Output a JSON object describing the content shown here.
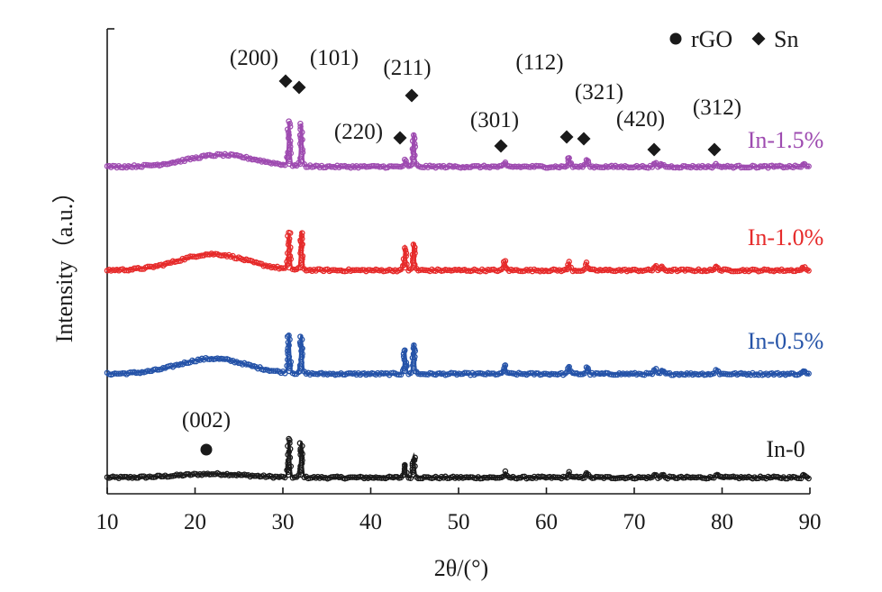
{
  "chart_data": {
    "type": "line",
    "title": "",
    "xlabel": "2θ/(°)",
    "ylabel": "Intensity（a.u.）",
    "xlim": [
      10,
      90
    ],
    "x_ticks": [
      "10",
      "20",
      "30",
      "40",
      "50",
      "60",
      "70",
      "80",
      "90"
    ],
    "y_ticks_shown": false,
    "grid": false,
    "legend": {
      "placement": "top-right",
      "entries": [
        {
          "label": "rGO",
          "marker": "circle"
        },
        {
          "label": "Sn",
          "marker": "diamond"
        }
      ]
    },
    "series": [
      {
        "name": "In-0",
        "color": "#1a1a1a",
        "baseline": 0,
        "hump": {
          "center": 22,
          "height": 4
        },
        "peaks": [
          {
            "x": 30.7,
            "height": 42
          },
          {
            "x": 32.1,
            "height": 40
          },
          {
            "x": 43.9,
            "height": 15
          },
          {
            "x": 44.9,
            "height": 24
          },
          {
            "x": 55.3,
            "height": 6
          },
          {
            "x": 62.6,
            "height": 6
          },
          {
            "x": 64.6,
            "height": 6
          },
          {
            "x": 72.4,
            "height": 4
          },
          {
            "x": 73.2,
            "height": 3
          },
          {
            "x": 79.4,
            "height": 5
          },
          {
            "x": 89.3,
            "height": 3
          }
        ]
      },
      {
        "name": "In-0.5%",
        "color": "#2553a8",
        "baseline": 115,
        "hump": {
          "center": 22,
          "height": 17
        },
        "peaks": [
          {
            "x": 30.7,
            "height": 43
          },
          {
            "x": 32.1,
            "height": 43
          },
          {
            "x": 43.9,
            "height": 27
          },
          {
            "x": 44.9,
            "height": 34
          },
          {
            "x": 55.3,
            "height": 10
          },
          {
            "x": 62.6,
            "height": 9
          },
          {
            "x": 64.6,
            "height": 8
          },
          {
            "x": 72.4,
            "height": 6
          },
          {
            "x": 73.2,
            "height": 4
          },
          {
            "x": 79.4,
            "height": 6
          },
          {
            "x": 89.3,
            "height": 4
          }
        ]
      },
      {
        "name": "In-1.0%",
        "color": "#e62b2b",
        "baseline": 230,
        "hump": {
          "center": 22,
          "height": 18
        },
        "peaks": [
          {
            "x": 30.7,
            "height": 40
          },
          {
            "x": 32.1,
            "height": 43
          },
          {
            "x": 43.9,
            "height": 25
          },
          {
            "x": 44.9,
            "height": 31
          },
          {
            "x": 55.3,
            "height": 10
          },
          {
            "x": 62.6,
            "height": 9
          },
          {
            "x": 64.6,
            "height": 8
          },
          {
            "x": 72.4,
            "height": 6
          },
          {
            "x": 73.2,
            "height": 4
          },
          {
            "x": 79.4,
            "height": 6
          },
          {
            "x": 89.3,
            "height": 4
          }
        ]
      },
      {
        "name": "In-1.5%",
        "color": "#9e4bb0",
        "baseline": 345,
        "hump": {
          "center": 23,
          "height": 13
        },
        "peaks": [
          {
            "x": 30.7,
            "height": 48
          },
          {
            "x": 32.1,
            "height": 47
          },
          {
            "x": 43.9,
            "height": 7
          },
          {
            "x": 44.9,
            "height": 37
          },
          {
            "x": 55.3,
            "height": 4
          },
          {
            "x": 62.6,
            "height": 10
          },
          {
            "x": 64.6,
            "height": 9
          },
          {
            "x": 72.4,
            "height": 4
          },
          {
            "x": 73.2,
            "height": 3
          },
          {
            "x": 79.4,
            "height": 3
          },
          {
            "x": 89.3,
            "height": 3
          }
        ]
      }
    ],
    "annotations": [
      {
        "text": "(002)",
        "x": 22,
        "marker": "circle",
        "series": "In-0"
      },
      {
        "text": "(200)",
        "x": 30.7,
        "marker": "diamond",
        "series": "In-1.5%"
      },
      {
        "text": "(101)",
        "x": 32.1,
        "marker": "diamond",
        "series": "In-1.5%"
      },
      {
        "text": "(220)",
        "x": 43.9,
        "marker": "diamond",
        "series": "In-1.5%"
      },
      {
        "text": "(211)",
        "x": 45,
        "marker": "diamond",
        "series": "In-1.5%"
      },
      {
        "text": "(301)",
        "x": 55.3,
        "marker": "diamond",
        "series": "In-1.5%"
      },
      {
        "text": "(112)",
        "x": 62.6,
        "marker": "diamond",
        "series": "In-1.5%"
      },
      {
        "text": "(321)",
        "x": 64.6,
        "marker": "diamond",
        "series": "In-1.5%"
      },
      {
        "text": "(420)",
        "x": 72.4,
        "marker": "diamond",
        "series": "In-1.5%"
      },
      {
        "text": "(312)",
        "x": 79.4,
        "marker": "diamond",
        "series": "In-1.5%"
      }
    ]
  }
}
